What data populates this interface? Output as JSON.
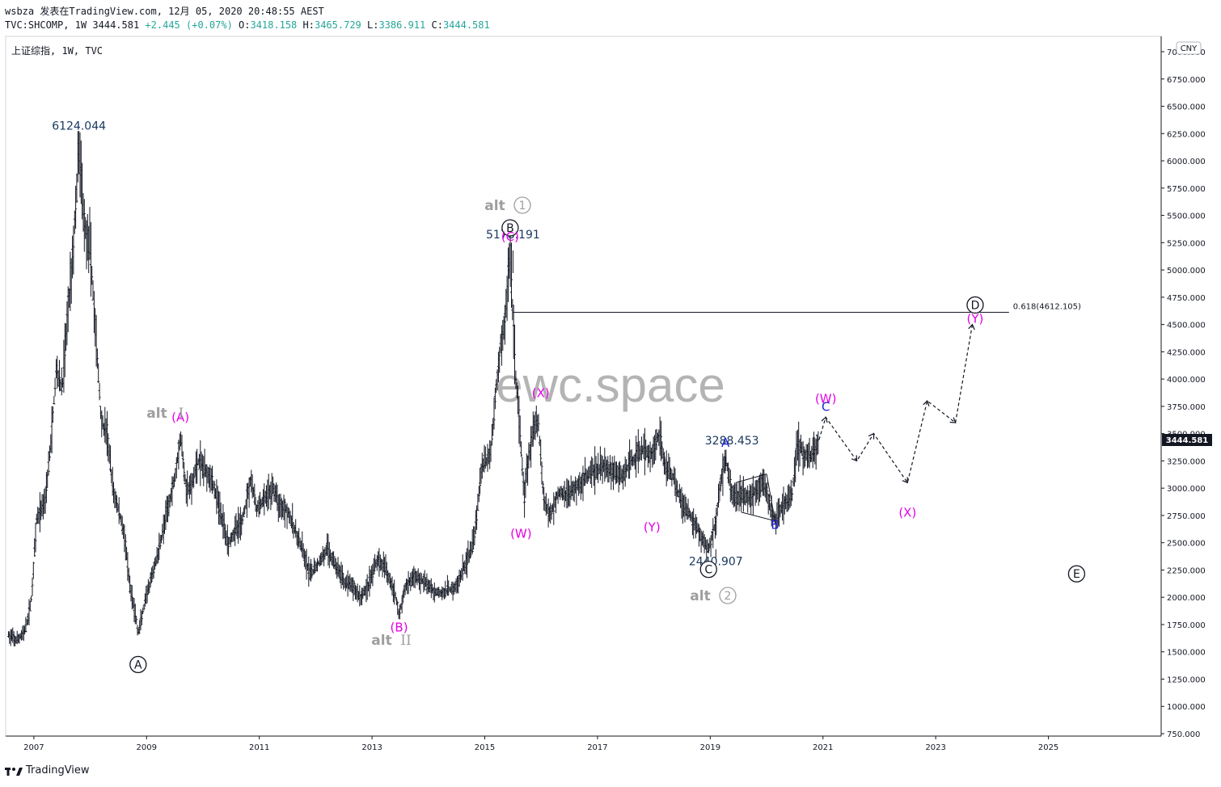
{
  "header": {
    "line1": "wsbza 发表在TradingView.com, 12月 05, 2020 20:48:55 AEST",
    "symbol": "TVC:SHCOMP, 1W",
    "last": "3444.581",
    "change": "+2.445 (+0.07%)",
    "o_label": "O:",
    "o": "3418.158",
    "h_label": "H:",
    "h": "3465.729",
    "l_label": "L:",
    "l": "3386.911",
    "c_label": "C:",
    "c": "3444.581"
  },
  "panel_title": "上证综指, 1W, TVC",
  "currency_badge": "CNY",
  "price_tag": "3444.581",
  "watermark": "ewc.space",
  "footer": {
    "brand": "TradingView"
  },
  "colors": {
    "candles": "#131722",
    "magenta": "#e500e5",
    "blue": "#1f1fd6",
    "grey": "#9e9e9e",
    "navy": "#17375e",
    "watermark": "#b4b4b4"
  },
  "chart_data": {
    "type": "line",
    "title": "上证综指, 1W, TVC",
    "xlabel": "",
    "ylabel": "",
    "x_ticks": [
      "2007",
      "2009",
      "2011",
      "2013",
      "2015",
      "2017",
      "2019",
      "2021",
      "2023",
      "2025"
    ],
    "y_ticks": [
      "750.000",
      "1000.000",
      "1250.000",
      "1500.000",
      "1750.000",
      "2000.000",
      "2250.000",
      "2500.000",
      "2750.000",
      "3000.000",
      "3250.000",
      "3500.000",
      "3750.000",
      "4000.000",
      "4250.000",
      "4500.000",
      "4750.000",
      "5000.000",
      "5250.000",
      "5500.000",
      "5750.000",
      "6000.000",
      "6250.000",
      "6500.000",
      "6750.000",
      "7000.000"
    ],
    "ylim": [
      700,
      7100
    ],
    "xlim": [
      2006.5,
      2027.0
    ],
    "series": [
      {
        "values": [
          [
            2006.55,
            1650
          ],
          [
            2006.7,
            1600
          ],
          [
            2006.85,
            1700
          ],
          [
            2006.95,
            1950
          ],
          [
            2007.05,
            2700
          ],
          [
            2007.2,
            2900
          ],
          [
            2007.3,
            3400
          ],
          [
            2007.4,
            4100
          ],
          [
            2007.5,
            3900
          ],
          [
            2007.6,
            4600
          ],
          [
            2007.7,
            5200
          ],
          [
            2007.8,
            6124.044
          ],
          [
            2007.9,
            5400
          ],
          [
            2008.0,
            5200
          ],
          [
            2008.1,
            4400
          ],
          [
            2008.2,
            3600
          ],
          [
            2008.3,
            3500
          ],
          [
            2008.4,
            3000
          ],
          [
            2008.5,
            2800
          ],
          [
            2008.6,
            2600
          ],
          [
            2008.7,
            2100
          ],
          [
            2008.8,
            1850
          ],
          [
            2008.85,
            1664.925
          ],
          [
            2008.95,
            1900
          ],
          [
            2009.1,
            2200
          ],
          [
            2009.2,
            2400
          ],
          [
            2009.35,
            2750
          ],
          [
            2009.5,
            3100
          ],
          [
            2009.6,
            3478.01
          ],
          [
            2009.7,
            3000
          ],
          [
            2009.8,
            3000
          ],
          [
            2009.9,
            3250
          ],
          [
            2010.0,
            3200
          ],
          [
            2010.15,
            3100
          ],
          [
            2010.3,
            2800
          ],
          [
            2010.45,
            2500
          ],
          [
            2010.55,
            2600
          ],
          [
            2010.7,
            2700
          ],
          [
            2010.85,
            3100
          ],
          [
            2010.95,
            2800
          ],
          [
            2011.1,
            2900
          ],
          [
            2011.25,
            3000
          ],
          [
            2011.35,
            2850
          ],
          [
            2011.5,
            2800
          ],
          [
            2011.6,
            2650
          ],
          [
            2011.75,
            2450
          ],
          [
            2011.9,
            2200
          ],
          [
            2012.1,
            2350
          ],
          [
            2012.2,
            2450
          ],
          [
            2012.35,
            2300
          ],
          [
            2012.5,
            2150
          ],
          [
            2012.65,
            2100
          ],
          [
            2012.8,
            2000
          ],
          [
            2012.92,
            2100
          ],
          [
            2013.1,
            2350
          ],
          [
            2013.25,
            2250
          ],
          [
            2013.4,
            2050
          ],
          [
            2013.48,
            1849.65
          ],
          [
            2013.6,
            2100
          ],
          [
            2013.75,
            2200
          ],
          [
            2013.9,
            2150
          ],
          [
            2014.1,
            2050
          ],
          [
            2014.3,
            2050
          ],
          [
            2014.5,
            2100
          ],
          [
            2014.65,
            2300
          ],
          [
            2014.8,
            2500
          ],
          [
            2014.95,
            3200
          ],
          [
            2015.1,
            3300
          ],
          [
            2015.25,
            4200
          ],
          [
            2015.35,
            4500
          ],
          [
            2015.45,
            5178.191
          ],
          [
            2015.55,
            4000
          ],
          [
            2015.6,
            3700
          ],
          [
            2015.7,
            2900
          ],
          [
            2015.75,
            3200
          ],
          [
            2015.85,
            3500
          ],
          [
            2015.95,
            3600
          ],
          [
            2016.05,
            2900
          ],
          [
            2016.15,
            2750
          ],
          [
            2016.3,
            2950
          ],
          [
            2016.5,
            2950
          ],
          [
            2016.7,
            3050
          ],
          [
            2016.9,
            3150
          ],
          [
            2017.1,
            3200
          ],
          [
            2017.3,
            3150
          ],
          [
            2017.45,
            3100
          ],
          [
            2017.6,
            3250
          ],
          [
            2017.8,
            3350
          ],
          [
            2017.95,
            3300
          ],
          [
            2018.1,
            3500
          ],
          [
            2018.2,
            3200
          ],
          [
            2018.35,
            3100
          ],
          [
            2018.5,
            2850
          ],
          [
            2018.65,
            2750
          ],
          [
            2018.8,
            2600
          ],
          [
            2018.9,
            2500
          ],
          [
            2018.97,
            2440.907
          ],
          [
            2019.1,
            2700
          ],
          [
            2019.2,
            3100
          ],
          [
            2019.27,
            3288.453
          ],
          [
            2019.4,
            2900
          ],
          [
            2019.55,
            2950
          ],
          [
            2019.7,
            2900
          ],
          [
            2019.85,
            3000
          ],
          [
            2019.95,
            3050
          ],
          [
            2020.05,
            2850
          ],
          [
            2020.15,
            2700
          ],
          [
            2020.3,
            2850
          ],
          [
            2020.45,
            2950
          ],
          [
            2020.55,
            3400
          ],
          [
            2020.7,
            3300
          ],
          [
            2020.8,
            3300
          ],
          [
            2020.93,
            3444.581
          ]
        ]
      },
      {
        "values": [
          [
            2020.93,
            3444.581
          ],
          [
            2021.05,
            3650
          ],
          [
            2021.6,
            3250
          ],
          [
            2021.9,
            3500
          ],
          [
            2022.5,
            3050
          ],
          [
            2022.85,
            3800
          ],
          [
            2023.35,
            3600
          ],
          [
            2023.65,
            4500
          ]
        ]
      }
    ],
    "annotations": {
      "price_labels": [
        {
          "text": "6124.044",
          "x": 2007.8,
          "y": 6124.044
        },
        {
          "text": "5178.191",
          "x": 2015.5,
          "y": 5178.191
        },
        {
          "text": "3288.453",
          "x": 2019.27,
          "y": 3288.453
        },
        {
          "text": "2440.907",
          "x": 2019.1,
          "y": 2440.907
        }
      ],
      "circled_waves": [
        {
          "text": "A",
          "x": 2008.85,
          "y": 1664.925
        },
        {
          "text": "B",
          "x": 2015.45,
          "y": 5178.191
        },
        {
          "text": "C",
          "x": 2018.97,
          "y": 2440.907
        },
        {
          "text": "D",
          "x": 2023.7,
          "y": 4612.105
        },
        {
          "text": "E",
          "x": 2025.5,
          "y": 2200
        }
      ],
      "magenta_waves": [
        {
          "text": "(A)",
          "x": 2009.6,
          "y": 3478.01
        },
        {
          "text": "(B)",
          "x": 2013.48,
          "y": 1849.65
        },
        {
          "text": "(C)",
          "x": 2015.45,
          "y": 5178.191
        },
        {
          "text": "(W)",
          "x": 2015.6,
          "y": 2900
        },
        {
          "text": "(X)",
          "x": 2015.95,
          "y": 3700
        },
        {
          "text": "(Y)",
          "x": 2018.97,
          "y": 2440.907
        },
        {
          "text": "(W)",
          "x": 2021.05,
          "y": 3650
        },
        {
          "text": "(X)",
          "x": 2022.5,
          "y": 3050
        },
        {
          "text": "(Y)",
          "x": 2023.7,
          "y": 4612.105
        }
      ],
      "blue_waves": [
        {
          "text": "A",
          "x": 2019.27,
          "y": 3288.453
        },
        {
          "text": "B",
          "x": 2020.15,
          "y": 2700
        },
        {
          "text": "C",
          "x": 2021.05,
          "y": 3650
        }
      ],
      "alt_labels": [
        {
          "text": "alt",
          "numeral": "I",
          "x": 2009.5,
          "y": 3478.01
        },
        {
          "text": "alt",
          "numeral": "II",
          "x": 2013.4,
          "y": 1849.65
        },
        {
          "text": "alt",
          "numeral": "1",
          "x": 2015.45,
          "y": 5178.191
        },
        {
          "text": "alt",
          "numeral": "2",
          "x": 2018.97,
          "y": 2440.907
        }
      ],
      "fib_level": {
        "text": "0.618(4612.105)",
        "y": 4612.105,
        "x_start": 2015.5,
        "x_end": 2024.3
      }
    },
    "grid": false,
    "legend": "none"
  }
}
